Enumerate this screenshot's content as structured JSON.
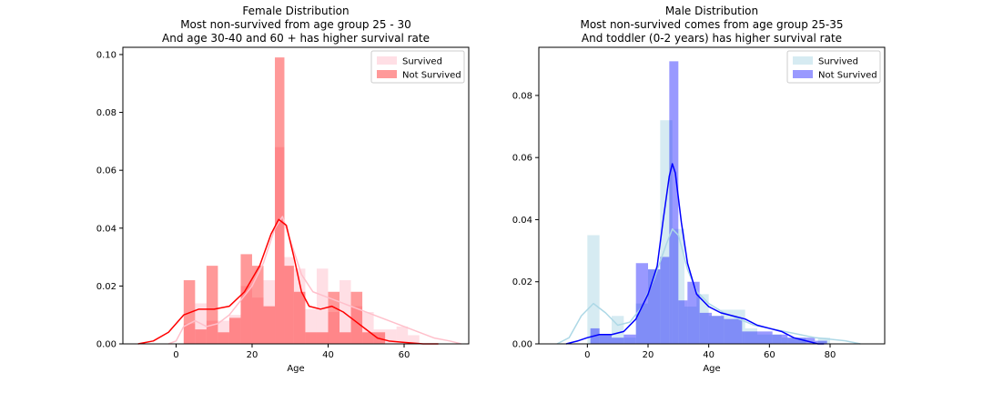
{
  "chart_data": [
    {
      "type": "bar",
      "title_lines": [
        "Female Distribution",
        "Most non-survived from age group 25 - 30",
        "And age 30-40 and 60 + has higher survival rate"
      ],
      "xlabel": "Age",
      "ylabel": "",
      "xlim": [
        -14,
        77
      ],
      "ylim": [
        0,
        0.1025
      ],
      "xticks": [
        0,
        20,
        40,
        60
      ],
      "yticks": [
        0.0,
        0.02,
        0.04,
        0.06,
        0.08,
        0.1
      ],
      "ytick_labels": [
        "0.00",
        "0.02",
        "0.04",
        "0.06",
        "0.08",
        "0.10"
      ],
      "legend_position": "top-right",
      "series": [
        {
          "name": "Survived",
          "color": "#ffc0cb",
          "bar_opacity": 0.5,
          "bins": [
            [
              2,
              5,
              0.007
            ],
            [
              5,
              8,
              0.014
            ],
            [
              8,
              11,
              0.008
            ],
            [
              11,
              14,
              0.008
            ],
            [
              14,
              17,
              0.01
            ],
            [
              17,
              20,
              0.02
            ],
            [
              20,
              23,
              0.016
            ],
            [
              23,
              26,
              0.022
            ],
            [
              26,
              28.5,
              0.068
            ],
            [
              28.5,
              31,
              0.03
            ],
            [
              31,
              34,
              0.026
            ],
            [
              34,
              37,
              0.012
            ],
            [
              37,
              40,
              0.026
            ],
            [
              40,
              43,
              0.011
            ],
            [
              43,
              46,
              0.022
            ],
            [
              46,
              49,
              0.013
            ],
            [
              49,
              52,
              0.011
            ],
            [
              52,
              55,
              0.005
            ],
            [
              55,
              58,
              0.005
            ],
            [
              58,
              61,
              0.006
            ],
            [
              61,
              64,
              0.003
            ]
          ],
          "kde": [
            [
              -2,
              0
            ],
            [
              0,
              0.001
            ],
            [
              2,
              0.006
            ],
            [
              5,
              0.008
            ],
            [
              8,
              0.006
            ],
            [
              11,
              0.007
            ],
            [
              14,
              0.01
            ],
            [
              17,
              0.015
            ],
            [
              20,
              0.02
            ],
            [
              23,
              0.028
            ],
            [
              26,
              0.04
            ],
            [
              28,
              0.044
            ],
            [
              30,
              0.036
            ],
            [
              33,
              0.024
            ],
            [
              36,
              0.018
            ],
            [
              40,
              0.016
            ],
            [
              44,
              0.014
            ],
            [
              48,
              0.012
            ],
            [
              52,
              0.01
            ],
            [
              56,
              0.008
            ],
            [
              60,
              0.006
            ],
            [
              64,
              0.004
            ],
            [
              68,
              0.002
            ],
            [
              72,
              0.001
            ],
            [
              75,
              0
            ]
          ]
        },
        {
          "name": "Not Survived",
          "color": "#ff0000",
          "bar_opacity": 0.4,
          "bins": [
            [
              2,
              5,
              0.022
            ],
            [
              5,
              8,
              0.005
            ],
            [
              8,
              11,
              0.027
            ],
            [
              11,
              14,
              0.004
            ],
            [
              14,
              17,
              0.009
            ],
            [
              17,
              20,
              0.031
            ],
            [
              20,
              23,
              0.027
            ],
            [
              23,
              26,
              0.013
            ],
            [
              26,
              28.5,
              0.099
            ],
            [
              28.5,
              31,
              0.027
            ],
            [
              31,
              34,
              0.018
            ],
            [
              34,
              37,
              0.004
            ],
            [
              37,
              40,
              0.004
            ],
            [
              40,
              43,
              0.018
            ],
            [
              43,
              46,
              0.004
            ],
            [
              46,
              49,
              0.018
            ],
            [
              49,
              52,
              0.004
            ],
            [
              52,
              55,
              0.004
            ]
          ],
          "kde": [
            [
              -10,
              0
            ],
            [
              -6,
              0.001
            ],
            [
              -2,
              0.004
            ],
            [
              2,
              0.01
            ],
            [
              6,
              0.012
            ],
            [
              10,
              0.012
            ],
            [
              14,
              0.013
            ],
            [
              18,
              0.018
            ],
            [
              22,
              0.027
            ],
            [
              25,
              0.038
            ],
            [
              27,
              0.043
            ],
            [
              29,
              0.041
            ],
            [
              31,
              0.03
            ],
            [
              33,
              0.018
            ],
            [
              35,
              0.013
            ],
            [
              38,
              0.012
            ],
            [
              41,
              0.013
            ],
            [
              44,
              0.011
            ],
            [
              47,
              0.008
            ],
            [
              50,
              0.005
            ],
            [
              53,
              0.002
            ],
            [
              56,
              0.001
            ],
            [
              60,
              0.0005
            ],
            [
              65,
              0
            ],
            [
              69,
              0
            ]
          ]
        }
      ]
    },
    {
      "type": "bar",
      "title_lines": [
        "Male Distribution",
        "Most non-survived comes from age group 25-35",
        "And toddler (0-2 years) has higher survival rate"
      ],
      "xlabel": "Age",
      "ylabel": "",
      "xlim": [
        -16,
        98
      ],
      "ylim": [
        0,
        0.0955
      ],
      "xticks": [
        0,
        20,
        40,
        60,
        80
      ],
      "yticks": [
        0.0,
        0.02,
        0.04,
        0.06,
        0.08
      ],
      "ytick_labels": [
        "0.00",
        "0.02",
        "0.04",
        "0.06",
        "0.08"
      ],
      "legend_position": "top-right",
      "series": [
        {
          "name": "Survived",
          "color": "#add8e6",
          "bar_opacity": 0.5,
          "bins": [
            [
              0,
              4,
              0.035
            ],
            [
              4,
              8,
              0.003
            ],
            [
              8,
              12,
              0.009
            ],
            [
              12,
              16,
              0.002
            ],
            [
              16,
              20,
              0.013
            ],
            [
              20,
              24,
              0.024
            ],
            [
              24,
              28,
              0.072
            ],
            [
              28,
              32,
              0.037
            ],
            [
              32,
              36,
              0.012
            ],
            [
              36,
              40,
              0.016
            ],
            [
              40,
              44,
              0.009
            ],
            [
              44,
              48,
              0.011
            ],
            [
              48,
              52,
              0.011
            ],
            [
              52,
              56,
              0.005
            ],
            [
              56,
              60,
              0.003
            ],
            [
              60,
              64,
              0.003
            ],
            [
              64,
              68,
              0.002
            ],
            [
              68,
              72,
              0.002
            ],
            [
              76,
              80,
              0.002
            ]
          ],
          "kde": [
            [
              -10,
              0
            ],
            [
              -6,
              0.002
            ],
            [
              -2,
              0.009
            ],
            [
              2,
              0.013
            ],
            [
              6,
              0.01
            ],
            [
              10,
              0.006
            ],
            [
              14,
              0.007
            ],
            [
              18,
              0.012
            ],
            [
              22,
              0.021
            ],
            [
              26,
              0.032
            ],
            [
              28,
              0.037
            ],
            [
              30,
              0.035
            ],
            [
              33,
              0.024
            ],
            [
              36,
              0.017
            ],
            [
              40,
              0.013
            ],
            [
              45,
              0.01
            ],
            [
              50,
              0.008
            ],
            [
              55,
              0.006
            ],
            [
              60,
              0.005
            ],
            [
              65,
              0.004
            ],
            [
              70,
              0.003
            ],
            [
              75,
              0.002
            ],
            [
              80,
              0.0015
            ],
            [
              85,
              0.001
            ],
            [
              90,
              0
            ]
          ]
        },
        {
          "name": "Not Survived",
          "color": "#0000ff",
          "bar_opacity": 0.4,
          "bins": [
            [
              1,
              4,
              0.005
            ],
            [
              4,
              8,
              0.003
            ],
            [
              8,
              12,
              0.002
            ],
            [
              12,
              16,
              0.003
            ],
            [
              16,
              20,
              0.026
            ],
            [
              20,
              24,
              0.024
            ],
            [
              24,
              27,
              0.028
            ],
            [
              27,
              30,
              0.091
            ],
            [
              30,
              33,
              0.014
            ],
            [
              33,
              37,
              0.02
            ],
            [
              37,
              41,
              0.01
            ],
            [
              41,
              45,
              0.009
            ],
            [
              45,
              51,
              0.008
            ],
            [
              51,
              56,
              0.004
            ],
            [
              56,
              61,
              0.004
            ],
            [
              61,
              66,
              0.003
            ],
            [
              66,
              71,
              0.002
            ],
            [
              71,
              75,
              0.002
            ],
            [
              75,
              79,
              0.001
            ]
          ],
          "kde": [
            [
              -7,
              0
            ],
            [
              -3,
              0.001
            ],
            [
              0,
              0.002
            ],
            [
              4,
              0.003
            ],
            [
              8,
              0.003
            ],
            [
              12,
              0.004
            ],
            [
              16,
              0.008
            ],
            [
              20,
              0.016
            ],
            [
              23,
              0.025
            ],
            [
              25,
              0.04
            ],
            [
              27,
              0.054
            ],
            [
              28,
              0.058
            ],
            [
              29,
              0.055
            ],
            [
              31,
              0.039
            ],
            [
              33,
              0.026
            ],
            [
              36,
              0.016
            ],
            [
              40,
              0.012
            ],
            [
              44,
              0.01
            ],
            [
              48,
              0.009
            ],
            [
              52,
              0.008
            ],
            [
              56,
              0.006
            ],
            [
              60,
              0.005
            ],
            [
              64,
              0.004
            ],
            [
              68,
              0.002
            ],
            [
              72,
              0.001
            ],
            [
              76,
              0
            ],
            [
              78,
              0
            ]
          ]
        }
      ]
    }
  ]
}
